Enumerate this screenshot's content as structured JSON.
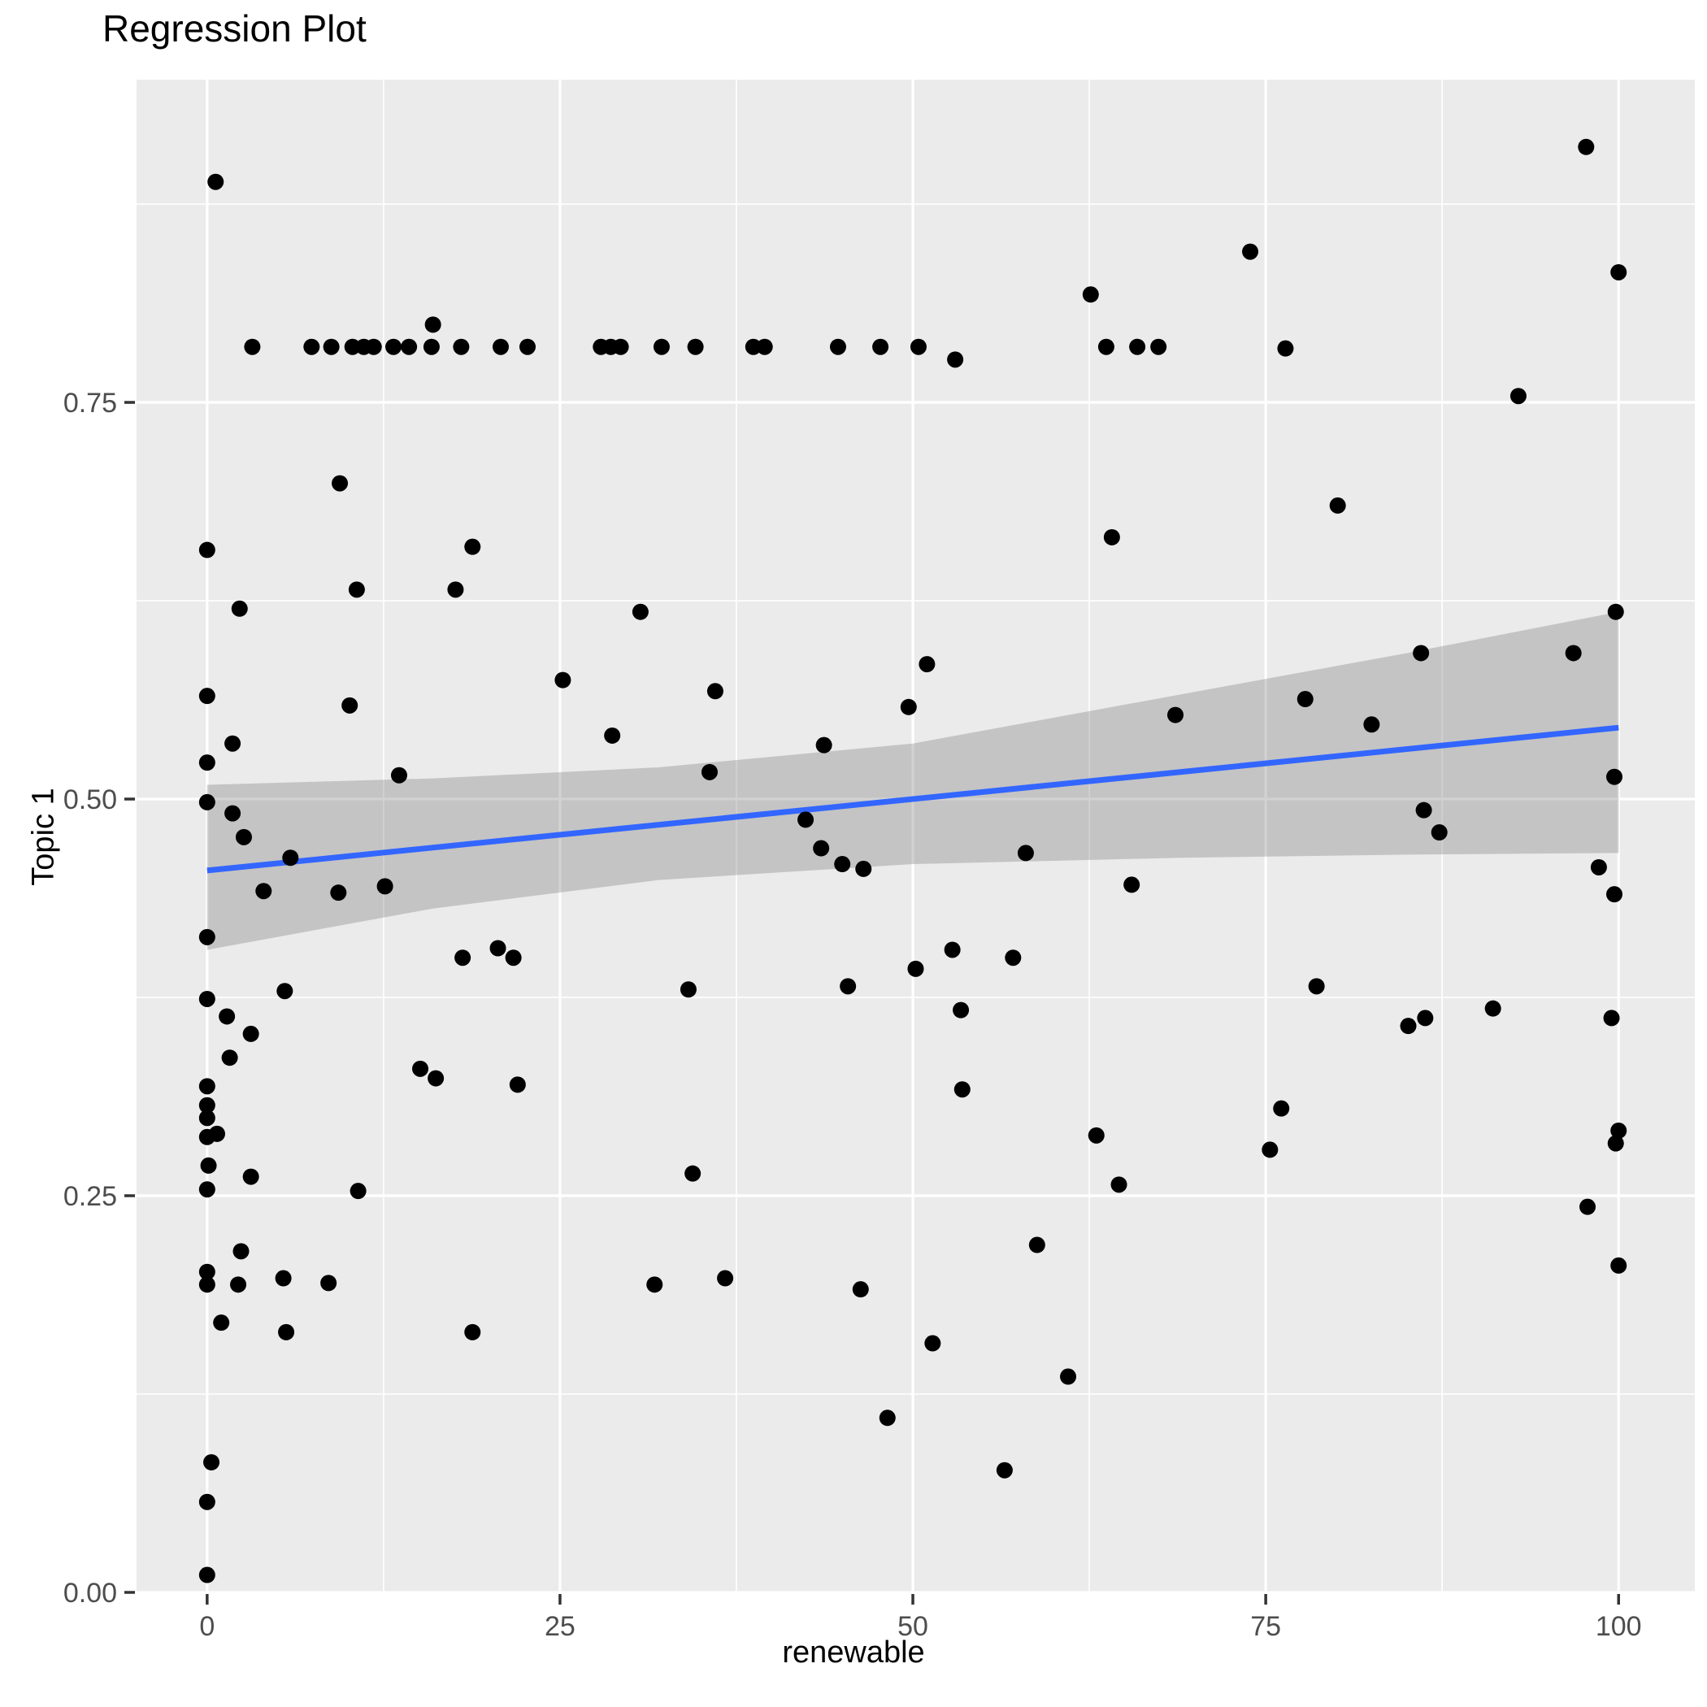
{
  "title": "Regression Plot",
  "chart_data": {
    "type": "scatter",
    "title": "Regression Plot",
    "xlabel": "renewable",
    "ylabel": "Topic 1",
    "xlim": [
      -5.0,
      105.4
    ],
    "ylim": [
      0,
      0.9534
    ],
    "x_ticks": [
      0,
      25,
      50,
      75,
      100
    ],
    "x_tick_labels": [
      "0",
      "25",
      "50",
      "75",
      "100"
    ],
    "y_ticks": [
      0.0,
      0.25,
      0.5,
      0.75
    ],
    "y_tick_labels": [
      "0.00",
      "0.25",
      "0.50",
      "0.75"
    ],
    "x_minor_gridlines": [
      12.5,
      37.5,
      62.5,
      87.5
    ],
    "y_minor_gridlines": [
      0.125,
      0.375,
      0.625,
      0.875
    ],
    "grid": true,
    "legend_position": "none",
    "point_color": "#000000",
    "point_radius_px": 10,
    "panel_bg": "#EBEBEB",
    "grid_color": "#FFFFFF",
    "tick_label_color": "#4D4D4D",
    "tick_color": "#333333",
    "band_fill": "rgba(105,105,105,0.30)",
    "line_color": "#3366FF",
    "regression_line": {
      "x": [
        0,
        100
      ],
      "y": [
        0.455,
        0.545
      ]
    },
    "confidence_band": {
      "x": [
        0,
        16,
        32,
        50,
        69,
        85,
        100
      ],
      "upper": [
        0.509,
        0.513,
        0.52,
        0.535,
        0.566,
        0.592,
        0.618
      ],
      "lower": [
        0.405,
        0.431,
        0.449,
        0.459,
        0.463,
        0.465,
        0.466
      ]
    },
    "points": [
      [
        3.2,
        0.785
      ],
      [
        7.4,
        0.785
      ],
      [
        8.8,
        0.785
      ],
      [
        10.3,
        0.785
      ],
      [
        11.1,
        0.785
      ],
      [
        11.8,
        0.785
      ],
      [
        13.2,
        0.785
      ],
      [
        14.3,
        0.785
      ],
      [
        15.9,
        0.785
      ],
      [
        18.0,
        0.785
      ],
      [
        20.8,
        0.785
      ],
      [
        22.7,
        0.785
      ],
      [
        27.9,
        0.785
      ],
      [
        28.6,
        0.785
      ],
      [
        29.3,
        0.785
      ],
      [
        32.2,
        0.785
      ],
      [
        34.6,
        0.785
      ],
      [
        38.7,
        0.785
      ],
      [
        39.5,
        0.785
      ],
      [
        44.7,
        0.785
      ],
      [
        47.7,
        0.785
      ],
      [
        50.4,
        0.785
      ],
      [
        63.7,
        0.785
      ],
      [
        65.9,
        0.785
      ],
      [
        67.4,
        0.785
      ],
      [
        76.4,
        0.784
      ],
      [
        16.0,
        0.799
      ],
      [
        53.0,
        0.777
      ],
      [
        62.6,
        0.818
      ],
      [
        0.6,
        0.889
      ],
      [
        97.7,
        0.911
      ],
      [
        73.9,
        0.845
      ],
      [
        100,
        0.832
      ],
      [
        92.9,
        0.754
      ],
      [
        80.1,
        0.685
      ],
      [
        64.1,
        0.665
      ],
      [
        9.4,
        0.699
      ],
      [
        0,
        0.657
      ],
      [
        18.8,
        0.659
      ],
      [
        10.6,
        0.632
      ],
      [
        17.6,
        0.632
      ],
      [
        2.3,
        0.62
      ],
      [
        30.7,
        0.618
      ],
      [
        25.2,
        0.575
      ],
      [
        0,
        0.565
      ],
      [
        10.1,
        0.559
      ],
      [
        28.7,
        0.54
      ],
      [
        1.8,
        0.535
      ],
      [
        0,
        0.523
      ],
      [
        13.6,
        0.515
      ],
      [
        0,
        0.498
      ],
      [
        1.8,
        0.491
      ],
      [
        2.6,
        0.476
      ],
      [
        5.9,
        0.463
      ],
      [
        4.0,
        0.442
      ],
      [
        9.3,
        0.441
      ],
      [
        12.6,
        0.445
      ],
      [
        0,
        0.413
      ],
      [
        18.1,
        0.4
      ],
      [
        20.6,
        0.406
      ],
      [
        21.7,
        0.4
      ],
      [
        5.5,
        0.379
      ],
      [
        0,
        0.374
      ],
      [
        1.4,
        0.363
      ],
      [
        3.1,
        0.352
      ],
      [
        1.6,
        0.337
      ],
      [
        15.1,
        0.33
      ],
      [
        16.2,
        0.324
      ],
      [
        22.0,
        0.32
      ],
      [
        51.0,
        0.585
      ],
      [
        36.0,
        0.568
      ],
      [
        49.7,
        0.558
      ],
      [
        43.7,
        0.534
      ],
      [
        35.6,
        0.517
      ],
      [
        68.6,
        0.553
      ],
      [
        42.4,
        0.487
      ],
      [
        43.5,
        0.469
      ],
      [
        45.0,
        0.459
      ],
      [
        46.5,
        0.456
      ],
      [
        58.0,
        0.466
      ],
      [
        65.5,
        0.446
      ],
      [
        34.1,
        0.38
      ],
      [
        45.4,
        0.382
      ],
      [
        50.2,
        0.393
      ],
      [
        52.8,
        0.405
      ],
      [
        57.1,
        0.4
      ],
      [
        53.4,
        0.367
      ],
      [
        53.5,
        0.317
      ],
      [
        99.8,
        0.618
      ],
      [
        86.0,
        0.592
      ],
      [
        96.8,
        0.592
      ],
      [
        77.8,
        0.563
      ],
      [
        82.5,
        0.547
      ],
      [
        99.7,
        0.514
      ],
      [
        86.2,
        0.493
      ],
      [
        87.3,
        0.479
      ],
      [
        98.6,
        0.457
      ],
      [
        99.7,
        0.44
      ],
      [
        78.6,
        0.382
      ],
      [
        91.1,
        0.368
      ],
      [
        85.1,
        0.357
      ],
      [
        86.3,
        0.362
      ],
      [
        99.5,
        0.362
      ],
      [
        0,
        0.319
      ],
      [
        0,
        0.307
      ],
      [
        0,
        0.299
      ],
      [
        0,
        0.287
      ],
      [
        0.7,
        0.289
      ],
      [
        0.1,
        0.269
      ],
      [
        0,
        0.254
      ],
      [
        0,
        0.202
      ],
      [
        0,
        0.194
      ],
      [
        3.1,
        0.262
      ],
      [
        10.7,
        0.253
      ],
      [
        2.4,
        0.215
      ],
      [
        2.2,
        0.194
      ],
      [
        5.4,
        0.198
      ],
      [
        8.6,
        0.195
      ],
      [
        1.0,
        0.17
      ],
      [
        5.6,
        0.164
      ],
      [
        18.8,
        0.164
      ],
      [
        0.3,
        0.082
      ],
      [
        0,
        0.057
      ],
      [
        0,
        0.011
      ],
      [
        34.4,
        0.264
      ],
      [
        63.0,
        0.288
      ],
      [
        64.6,
        0.257
      ],
      [
        58.8,
        0.219
      ],
      [
        36.7,
        0.198
      ],
      [
        31.7,
        0.194
      ],
      [
        46.3,
        0.191
      ],
      [
        51.4,
        0.157
      ],
      [
        48.2,
        0.11
      ],
      [
        56.5,
        0.077
      ],
      [
        61.0,
        0.136
      ],
      [
        76.1,
        0.305
      ],
      [
        75.3,
        0.279
      ],
      [
        100,
        0.291
      ],
      [
        99.8,
        0.283
      ],
      [
        97.8,
        0.243
      ],
      [
        100,
        0.206
      ]
    ]
  }
}
